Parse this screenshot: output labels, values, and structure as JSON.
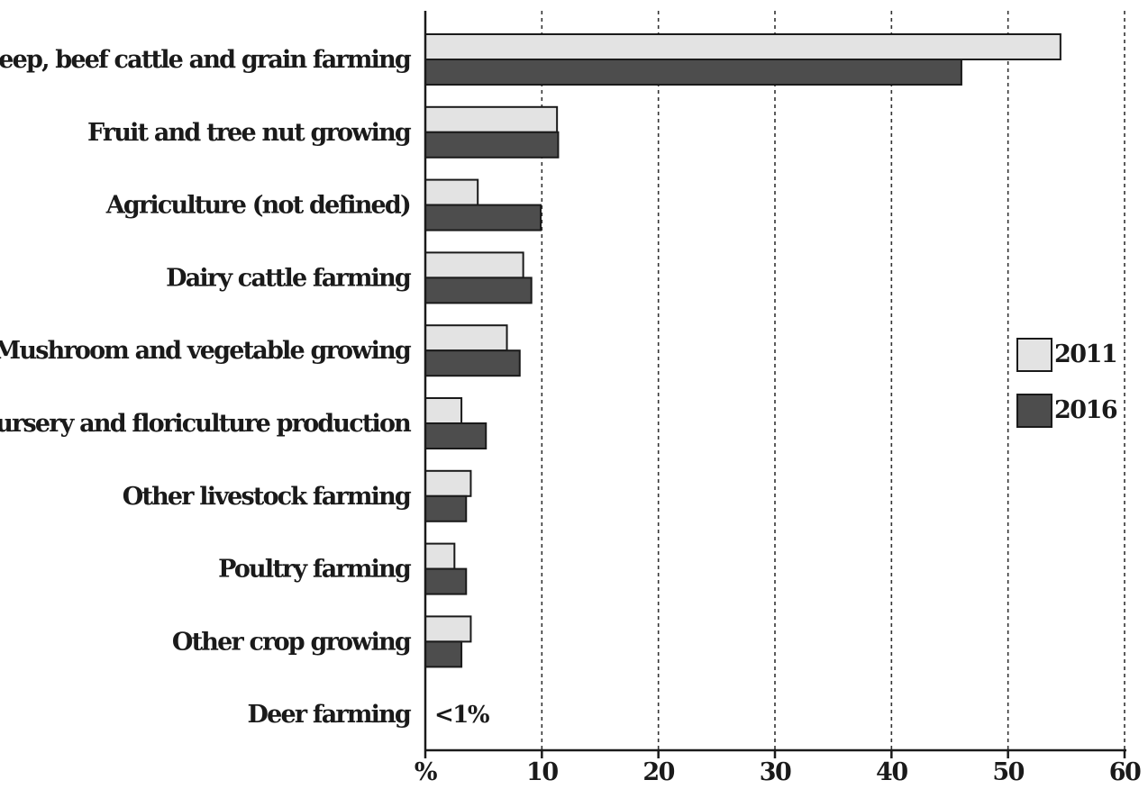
{
  "chart_data": {
    "type": "bar",
    "orientation": "horizontal",
    "categories": [
      "Sheep, beef cattle and grain farming",
      "Fruit and tree nut growing",
      "Agriculture (not defined)",
      "Dairy cattle farming",
      "Mushroom and vegetable growing",
      "Nursery and floriculture production",
      "Other livestock farming",
      "Poultry farming",
      "Other crop growing",
      "Deer farming"
    ],
    "series": [
      {
        "name": "2011",
        "color": "#e3e3e3",
        "values": [
          54.5,
          11.3,
          4.5,
          8.4,
          7.0,
          3.1,
          3.9,
          2.5,
          3.9,
          null
        ]
      },
      {
        "name": "2016",
        "color": "#4d4d4d",
        "values": [
          46.0,
          11.4,
          9.9,
          9.1,
          8.1,
          5.2,
          3.5,
          3.5,
          3.1,
          null
        ]
      }
    ],
    "annotations": [
      {
        "category": "Deer farming",
        "text": "<1%"
      }
    ],
    "xlim": [
      0,
      60
    ],
    "xticks": [
      "%",
      "10",
      "20",
      "30",
      "40",
      "50",
      "60"
    ],
    "grid": "vertical dashed",
    "legend_position": "right"
  }
}
